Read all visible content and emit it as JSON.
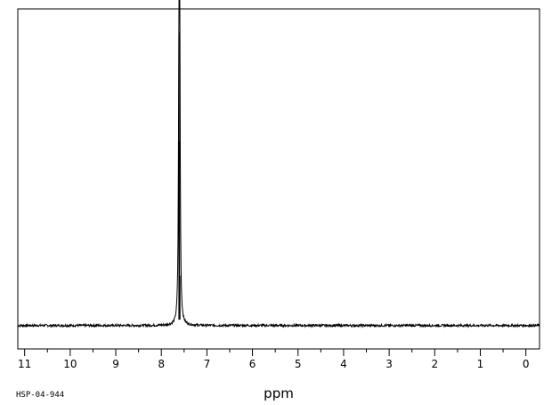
{
  "chart_data": {
    "type": "line",
    "title": "",
    "xlabel": "ppm",
    "ylabel": "",
    "sample_code": "HSP-04-944",
    "xlim": [
      11.15,
      -0.3
    ],
    "ylim": [
      -0.08,
      1.08
    ],
    "x_reversed": true,
    "major_ticks": [
      11,
      10,
      9,
      8,
      7,
      6,
      5,
      4,
      3,
      2,
      1,
      0
    ],
    "tick_labels": [
      "11",
      "10",
      "9",
      "8",
      "7",
      "6",
      "5",
      "4",
      "3",
      "2",
      "1",
      "0"
    ],
    "minor_tick_step": 0.5,
    "grid": false,
    "legend": "none",
    "series": [
      {
        "peaks": [
          {
            "ppm": 7.6,
            "height": 1.0
          },
          {
            "ppm": 7.615,
            "height": 0.63
          },
          {
            "ppm": 7.59,
            "height": 0.17
          }
        ],
        "color": "#000000"
      }
    ]
  }
}
